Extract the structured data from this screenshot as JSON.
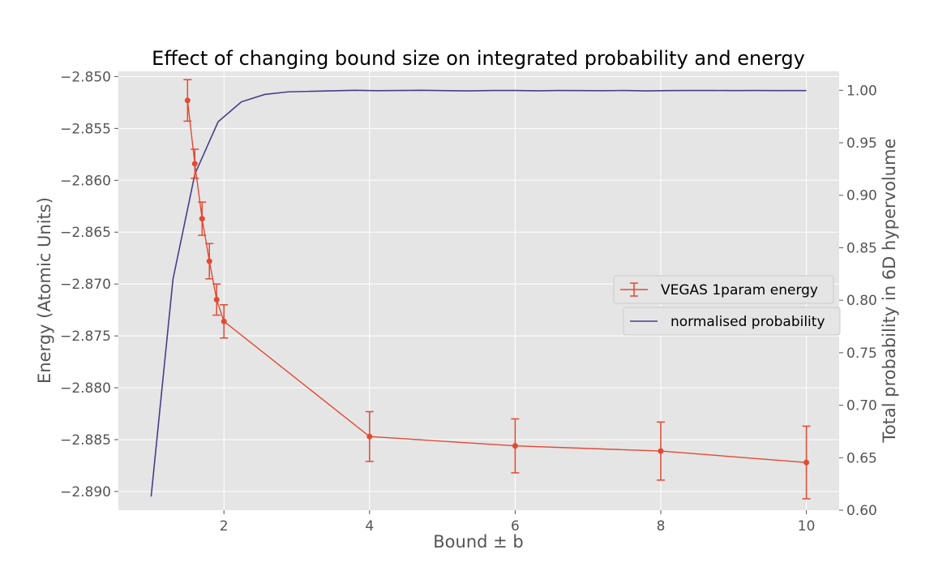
{
  "chart_data": {
    "type": "line",
    "title": "Effect of changing bound size on integrated probability and energy",
    "xlabel": "Bound ± b",
    "ylabel_left": "Energy (Atomic Units)",
    "ylabel_right": "Total probability in 6D hypervolume",
    "xlim": [
      0.55,
      10.45
    ],
    "ylim_left": [
      -2.8918,
      -2.8495
    ],
    "ylim_right": [
      0.6,
      1.018
    ],
    "x_ticks": [
      2,
      4,
      6,
      8,
      10
    ],
    "x_tick_labels": [
      "2",
      "4",
      "6",
      "8",
      "10"
    ],
    "y_left_ticks": [
      -2.85,
      -2.855,
      -2.86,
      -2.865,
      -2.87,
      -2.875,
      -2.88,
      -2.885,
      -2.89
    ],
    "y_left_tick_labels": [
      "−2.850",
      "−2.855",
      "−2.860",
      "−2.865",
      "−2.870",
      "−2.875",
      "−2.880",
      "−2.885",
      "−2.890"
    ],
    "y_right_ticks": [
      0.6,
      0.65,
      0.7,
      0.75,
      0.8,
      0.85,
      0.9,
      0.95,
      1.0
    ],
    "y_right_tick_labels": [
      "0.60",
      "0.65",
      "0.70",
      "0.75",
      "0.80",
      "0.85",
      "0.90",
      "0.95",
      "1.00"
    ],
    "grid": true,
    "series": [
      {
        "name": "VEGAS 1param energy",
        "axis": "left",
        "color": "#e24a33",
        "x": [
          1.5,
          1.6,
          1.7,
          1.8,
          1.9,
          2.0,
          4.0,
          6.0,
          8.0,
          10.0
        ],
        "y": [
          -2.8523,
          -2.8584,
          -2.8637,
          -2.8678,
          -2.8715,
          -2.8736,
          -2.8847,
          -2.8856,
          -2.8861,
          -2.8872
        ],
        "yerr": [
          0.002,
          0.0014,
          0.0016,
          0.0017,
          0.0015,
          0.0016,
          0.0024,
          0.0026,
          0.0028,
          0.0035
        ]
      },
      {
        "name": "normalised probability",
        "axis": "right",
        "color": "#483d8b",
        "x": [
          1.0,
          1.3,
          1.6,
          1.92,
          2.24,
          2.56,
          2.88,
          3.2,
          3.5,
          3.8,
          4.1,
          4.4,
          4.7,
          5.0,
          5.35,
          5.7,
          6.0,
          6.3,
          6.6,
          6.9,
          7.2,
          7.5,
          7.8,
          8.1,
          8.4,
          8.7,
          9.0,
          9.3,
          9.6,
          10.0
        ],
        "y": [
          0.613,
          0.82,
          0.92,
          0.97,
          0.989,
          0.996,
          0.9985,
          0.999,
          0.9995,
          1.0,
          0.9996,
          0.9998,
          1.0,
          0.9997,
          0.9994,
          0.9998,
          0.9998,
          0.9995,
          0.9998,
          0.9997,
          0.9996,
          0.9998,
          0.9994,
          0.9997,
          0.9998,
          0.9998,
          0.9997,
          0.9998,
          0.9997,
          0.9997
        ]
      }
    ],
    "legend": [
      {
        "label": "VEGAS 1param energy",
        "color": "#e24a33",
        "marker": "errorbar"
      },
      {
        "label": "normalised probability",
        "color": "#483d8b",
        "marker": "line"
      }
    ],
    "legend_placement": "center-right"
  }
}
